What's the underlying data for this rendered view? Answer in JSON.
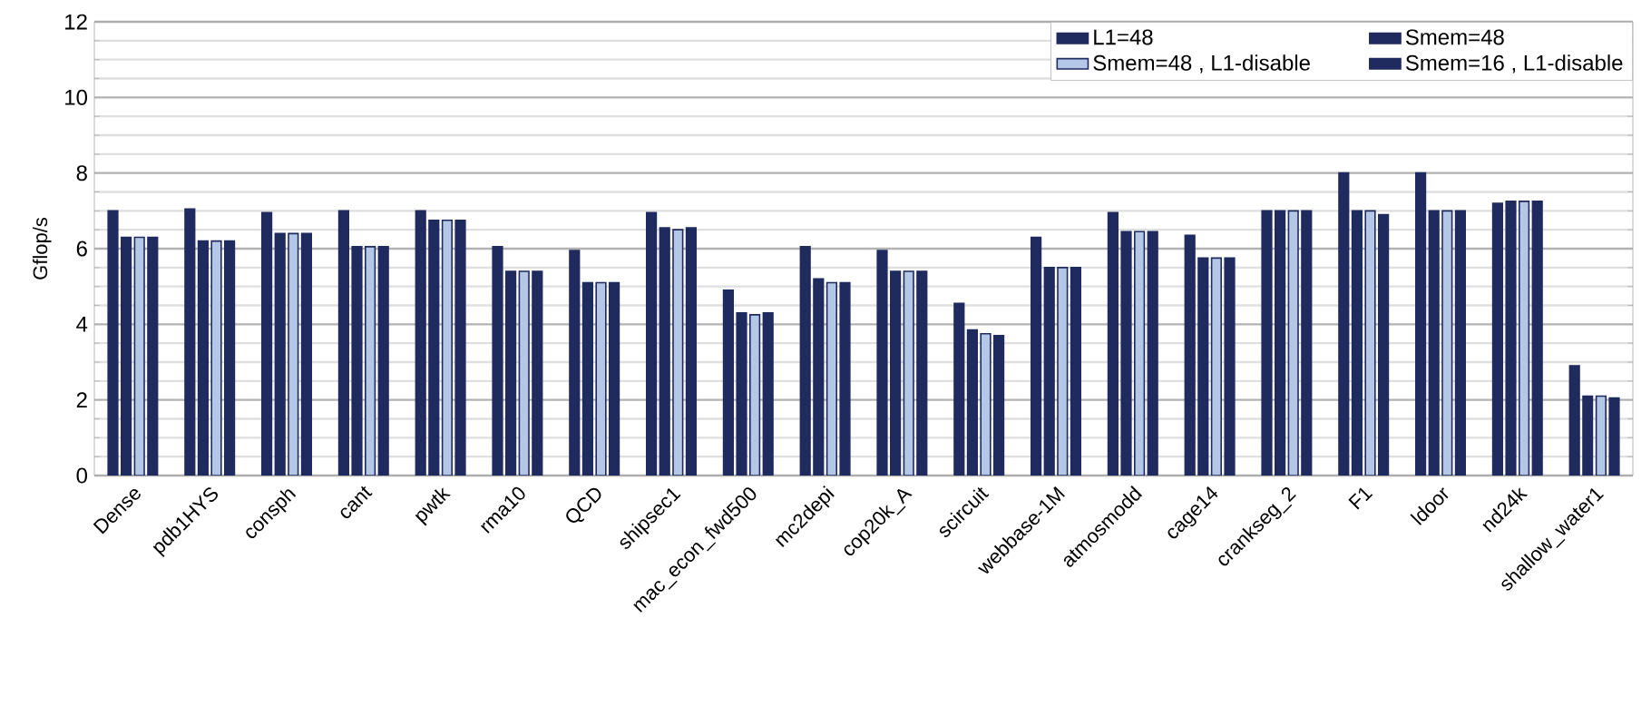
{
  "chart_data": {
    "type": "bar",
    "ylabel": "Gflop/s",
    "categories": [
      "Dense",
      "pdb1HYS",
      "consph",
      "cant",
      "pwtk",
      "rma10",
      "QCD",
      "shipsec1",
      "mac_econ_fwd500",
      "mc2depi",
      "cop20k_A",
      "scircuit",
      "webbase-1M",
      "atmosmodd",
      "cage14",
      "crankseg_2",
      "F1",
      "ldoor",
      "nd24k",
      "shallow_water1"
    ],
    "series": [
      {
        "name": "L1=48",
        "color": "#1f2a5e",
        "values": [
          7.0,
          7.05,
          6.95,
          7.0,
          7.0,
          6.05,
          5.95,
          6.95,
          4.9,
          6.05,
          5.95,
          4.55,
          6.3,
          6.95,
          6.35,
          7.0,
          8.0,
          8.0,
          7.2,
          2.9
        ]
      },
      {
        "name": "Smem=48",
        "color": "#1f2a5e",
        "values": [
          6.3,
          6.2,
          6.4,
          6.05,
          6.75,
          5.4,
          5.1,
          6.55,
          4.3,
          5.2,
          5.4,
          3.85,
          5.5,
          6.45,
          5.75,
          7.0,
          7.0,
          7.0,
          7.25,
          2.1
        ]
      },
      {
        "name": "Smem=48 , L1-disable",
        "color": "#b4c7e7",
        "values": [
          6.3,
          6.2,
          6.4,
          6.05,
          6.75,
          5.4,
          5.1,
          6.5,
          4.25,
          5.1,
          5.4,
          3.75,
          5.5,
          6.45,
          5.75,
          7.0,
          7.0,
          7.0,
          7.25,
          2.1
        ]
      },
      {
        "name": "Smem=16 , L1-disable",
        "color": "#1f2a5e",
        "values": [
          6.3,
          6.2,
          6.4,
          6.05,
          6.75,
          5.4,
          5.1,
          6.55,
          4.3,
          5.1,
          5.4,
          3.7,
          5.5,
          6.45,
          5.75,
          7.0,
          6.9,
          7.0,
          7.25,
          2.05
        ]
      }
    ],
    "ylim": [
      0,
      12
    ],
    "yticks": [
      0,
      2,
      4,
      6,
      8,
      10,
      12
    ],
    "grid": "y",
    "legend": "top right"
  }
}
